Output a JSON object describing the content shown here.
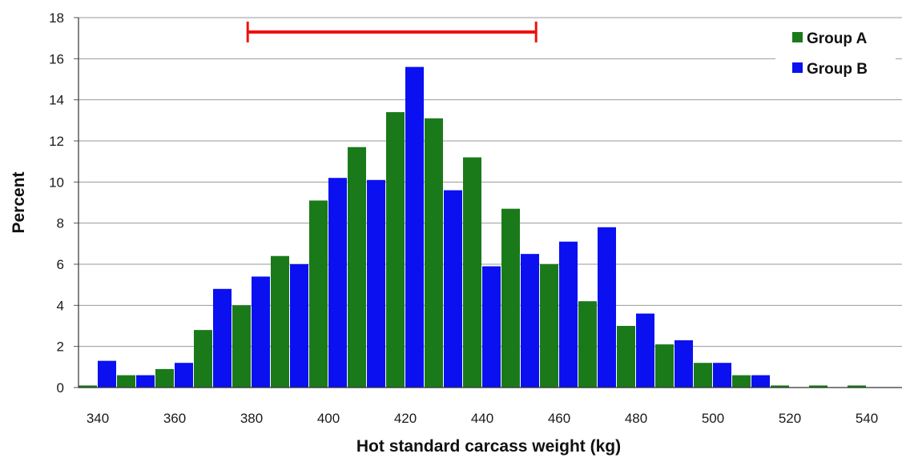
{
  "chart_data": {
    "type": "bar",
    "title": "",
    "xlabel": "Hot standard carcass weight (kg)",
    "ylabel": "Percent",
    "xlim": [
      335,
      545
    ],
    "ylim": [
      0,
      18
    ],
    "x_ticks": [
      340,
      360,
      380,
      400,
      420,
      440,
      460,
      480,
      500,
      520,
      540
    ],
    "y_ticks": [
      0,
      2,
      4,
      6,
      8,
      10,
      12,
      14,
      16,
      18
    ],
    "grid": "horizontal",
    "legend_position": "top-right",
    "bin_width_kg": 5,
    "bins_start": [
      335,
      340,
      345,
      350,
      355,
      360,
      365,
      370,
      375,
      380,
      385,
      390,
      395,
      400,
      405,
      410,
      415,
      420,
      425,
      430,
      435,
      440,
      445,
      450,
      455,
      460,
      465,
      470,
      475,
      480,
      485,
      490,
      495,
      500,
      505,
      510,
      515,
      520,
      525,
      530,
      535,
      540
    ],
    "series": [
      {
        "name": "Group A",
        "color": "#1a7a1a",
        "values": [
          0.1,
          null,
          0.6,
          null,
          0.9,
          null,
          2.8,
          null,
          4.0,
          null,
          6.4,
          null,
          9.1,
          null,
          11.7,
          null,
          13.4,
          null,
          13.1,
          null,
          11.2,
          null,
          8.7,
          null,
          6.0,
          null,
          4.2,
          null,
          3.0,
          null,
          2.1,
          null,
          1.2,
          null,
          0.6,
          null,
          0.1,
          null,
          0.1,
          null,
          0.1,
          null
        ]
      },
      {
        "name": "Group B",
        "color": "#0a10f0",
        "values": [
          null,
          1.3,
          null,
          0.6,
          null,
          1.2,
          null,
          4.8,
          null,
          5.4,
          null,
          6.0,
          null,
          10.2,
          null,
          10.1,
          null,
          15.6,
          null,
          9.6,
          null,
          5.9,
          null,
          6.5,
          null,
          7.1,
          null,
          7.8,
          null,
          3.6,
          null,
          2.3,
          null,
          1.2,
          null,
          0.6,
          null,
          null,
          null,
          null,
          null,
          null
        ]
      }
    ],
    "annotations": [
      {
        "type": "range-bar",
        "color": "#ee1111",
        "x_start": 379,
        "x_end": 454,
        "y": 17.3
      }
    ]
  }
}
